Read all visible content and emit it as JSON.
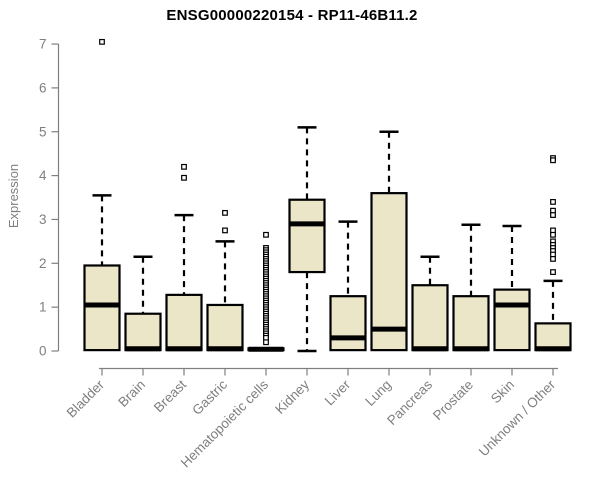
{
  "title": "ENSG00000220154 - RP11-46B11.2",
  "chart_data": {
    "type": "boxplot",
    "title": "ENSG00000220154 - RP11-46B11.2",
    "xlabel": "",
    "ylabel": "Expression",
    "ylim": [
      0,
      7
    ],
    "yticks": [
      0,
      1,
      2,
      3,
      4,
      5,
      6,
      7
    ],
    "grid": false,
    "legend": "none",
    "categories": [
      "Bladder",
      "Brain",
      "Breast",
      "Gastric",
      "Hematopoietic cells",
      "Kidney",
      "Liver",
      "Lung",
      "Pancreas",
      "Prostate",
      "Skin",
      "Unknown / Other"
    ],
    "boxes": [
      {
        "category": "Bladder",
        "q1": 0.02,
        "median": 1.05,
        "q3": 1.95,
        "whisker_low": 0.02,
        "whisker_high": 3.55,
        "outliers": [
          7.05
        ]
      },
      {
        "category": "Brain",
        "q1": 0.02,
        "median": 0.05,
        "q3": 0.85,
        "whisker_low": 0.02,
        "whisker_high": 2.15,
        "outliers": []
      },
      {
        "category": "Breast",
        "q1": 0.02,
        "median": 0.05,
        "q3": 1.28,
        "whisker_low": 0.02,
        "whisker_high": 3.1,
        "outliers": [
          4.2,
          3.95
        ]
      },
      {
        "category": "Gastric",
        "q1": 0.02,
        "median": 0.05,
        "q3": 1.05,
        "whisker_low": 0.02,
        "whisker_high": 2.5,
        "outliers": [
          3.15,
          2.75
        ]
      },
      {
        "category": "Hematopoietic cells",
        "q1": 0.02,
        "median": 0.04,
        "q3": 0.06,
        "whisker_low": 0.02,
        "whisker_high": 0.06,
        "outliers": [
          2.65,
          2.35,
          2.3,
          2.25,
          2.2,
          2.15,
          2.1,
          2.05,
          2.0,
          1.95,
          1.9,
          1.85,
          1.8,
          1.75,
          1.7,
          1.65,
          1.6,
          1.55,
          1.5,
          1.45,
          1.4,
          1.35,
          1.3,
          1.25,
          1.2,
          1.15,
          1.1,
          1.05,
          1.0,
          0.95,
          0.9,
          0.85,
          0.8,
          0.75,
          0.7,
          0.65,
          0.6,
          0.55,
          0.5,
          0.45,
          0.4,
          0.35,
          0.3,
          0.2
        ]
      },
      {
        "category": "Kidney",
        "q1": 1.8,
        "median": 2.9,
        "q3": 3.45,
        "whisker_low": 0.0,
        "whisker_high": 5.1,
        "outliers": []
      },
      {
        "category": "Liver",
        "q1": 0.02,
        "median": 0.3,
        "q3": 1.25,
        "whisker_low": 0.02,
        "whisker_high": 2.95,
        "outliers": []
      },
      {
        "category": "Lung",
        "q1": 0.02,
        "median": 0.5,
        "q3": 3.6,
        "whisker_low": 0.02,
        "whisker_high": 5.0,
        "outliers": []
      },
      {
        "category": "Pancreas",
        "q1": 0.02,
        "median": 0.05,
        "q3": 1.5,
        "whisker_low": 0.02,
        "whisker_high": 2.15,
        "outliers": []
      },
      {
        "category": "Prostate",
        "q1": 0.02,
        "median": 0.05,
        "q3": 1.25,
        "whisker_low": 0.02,
        "whisker_high": 2.88,
        "outliers": []
      },
      {
        "category": "Skin",
        "q1": 0.02,
        "median": 1.05,
        "q3": 1.4,
        "whisker_low": 0.02,
        "whisker_high": 2.85,
        "outliers": []
      },
      {
        "category": "Unknown / Other",
        "q1": 0.02,
        "median": 0.05,
        "q3": 0.63,
        "whisker_low": 0.02,
        "whisker_high": 1.6,
        "outliers": [
          4.4,
          4.35,
          3.4,
          3.2,
          3.1,
          2.75,
          2.65,
          2.5,
          2.42,
          2.35,
          2.28,
          2.2,
          2.1,
          1.8
        ]
      }
    ],
    "style": {
      "box_fill": "#ece6c8",
      "box_stroke": "#000000",
      "median_color": "#000000",
      "whisker_color": "#000000",
      "outlier_stroke": "#000000",
      "outlier_fill": "#ffffff",
      "axis_color": "#7f7f7f",
      "tick_label_color": "#7f7f7f",
      "title_color": "#000000",
      "background": "#ffffff"
    }
  }
}
